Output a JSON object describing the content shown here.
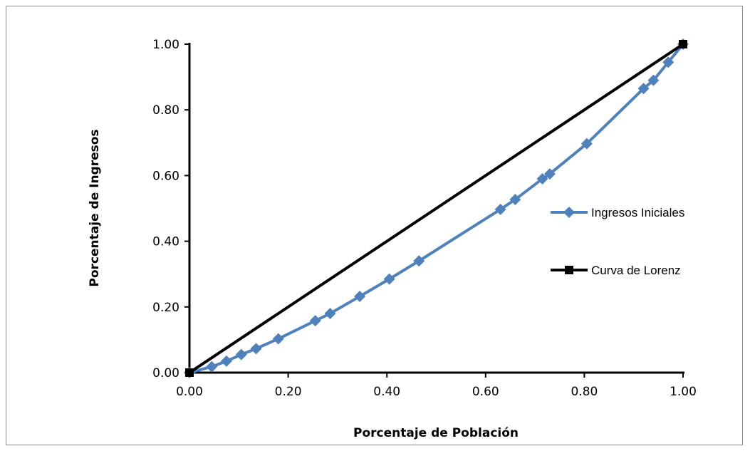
{
  "chart_data": {
    "type": "line",
    "title": "",
    "xlabel": "Porcentaje de Población",
    "ylabel": "Porcentaje de Ingresos",
    "xlim": [
      0,
      1
    ],
    "ylim": [
      0,
      1
    ],
    "x_ticks": [
      "0.00",
      "0.20",
      "0.40",
      "0.60",
      "0.80",
      "1.00"
    ],
    "y_ticks": [
      "0.00",
      "0.20",
      "0.40",
      "0.60",
      "0.80",
      "1.00"
    ],
    "grid": false,
    "legend_position": "right",
    "series": [
      {
        "name": "Ingresos Iniciales",
        "color": "#4f81bd",
        "marker": "diamond",
        "points": [
          [
            0.0,
            0.0
          ],
          [
            0.045,
            0.018
          ],
          [
            0.075,
            0.035
          ],
          [
            0.105,
            0.055
          ],
          [
            0.135,
            0.073
          ],
          [
            0.18,
            0.103
          ],
          [
            0.255,
            0.158
          ],
          [
            0.285,
            0.18
          ],
          [
            0.345,
            0.232
          ],
          [
            0.405,
            0.285
          ],
          [
            0.465,
            0.34
          ],
          [
            0.63,
            0.497
          ],
          [
            0.66,
            0.527
          ],
          [
            0.715,
            0.59
          ],
          [
            0.73,
            0.605
          ],
          [
            0.805,
            0.697
          ],
          [
            0.92,
            0.865
          ],
          [
            0.94,
            0.89
          ],
          [
            0.97,
            0.945
          ],
          [
            1.0,
            1.0
          ]
        ]
      },
      {
        "name": "Curva de Lorenz",
        "color": "#000000",
        "marker": "square",
        "points": [
          [
            0.0,
            0.0
          ],
          [
            1.0,
            1.0
          ]
        ]
      }
    ]
  }
}
